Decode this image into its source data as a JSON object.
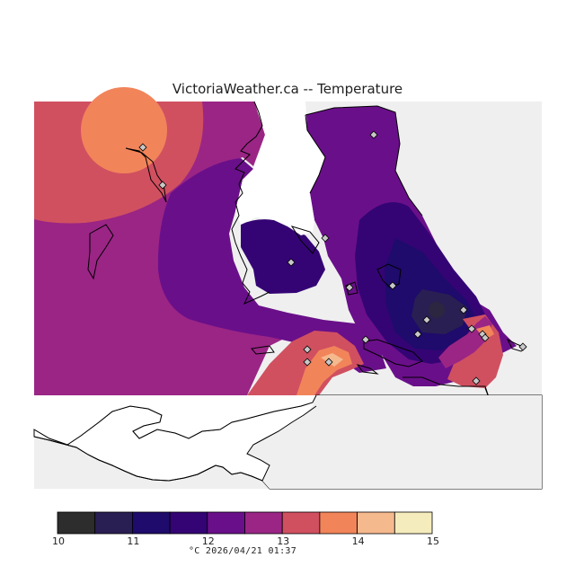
{
  "title": "VictoriaWeather.ca -- Temperature",
  "footer": {
    "units": "°C",
    "timestamp": "2026/04/21 01:37"
  },
  "legend": {
    "ticks": [
      "10",
      "11",
      "12",
      "13",
      "14",
      "15"
    ],
    "bins": [
      {
        "from": 10.0,
        "to": 10.5,
        "color": "#2d2d2d"
      },
      {
        "from": 10.5,
        "to": 11.0,
        "color": "#2a1f52"
      },
      {
        "from": 11.0,
        "to": 11.5,
        "color": "#1e0b6b"
      },
      {
        "from": 11.5,
        "to": 12.0,
        "color": "#340474"
      },
      {
        "from": 12.0,
        "to": 12.5,
        "color": "#6a0f8a"
      },
      {
        "from": 12.5,
        "to": 13.0,
        "color": "#9a2585"
      },
      {
        "from": 13.0,
        "to": 13.5,
        "color": "#d05060"
      },
      {
        "from": 13.5,
        "to": 14.0,
        "color": "#f2845a"
      },
      {
        "from": 14.0,
        "to": 14.5,
        "color": "#f5b98e"
      },
      {
        "from": 14.5,
        "to": 15.0,
        "color": "#f5ecbd"
      }
    ]
  },
  "colors": {
    "no_data": "#efefef",
    "land_outline": "#000000",
    "station_marker": "#c8c8c8"
  },
  "station_marker_icon": "diamond-icon"
}
